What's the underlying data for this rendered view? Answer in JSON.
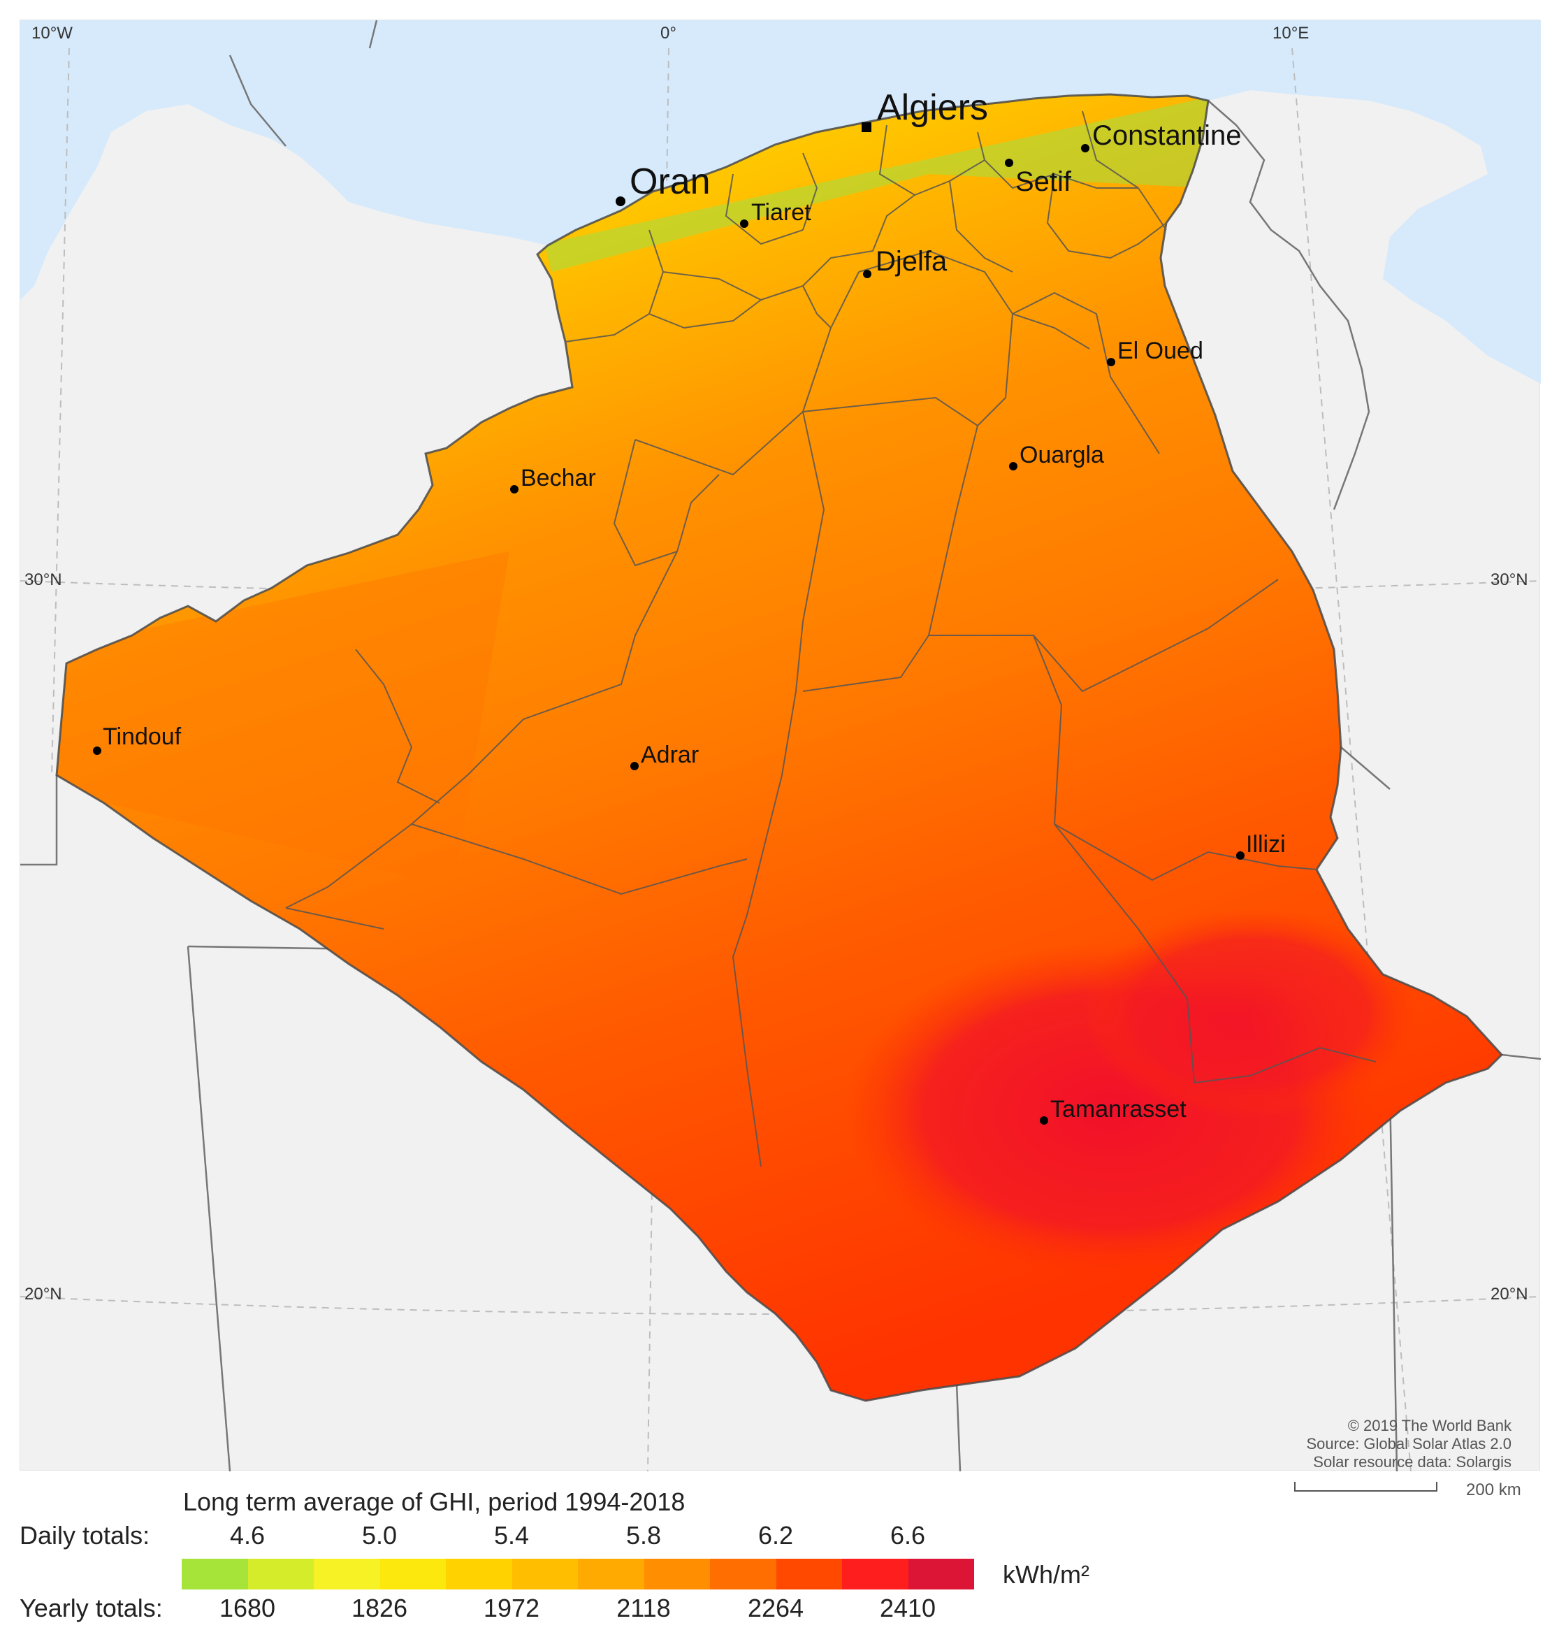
{
  "map": {
    "graticule": {
      "lon_labels": [
        "10°W",
        "0°",
        "10°E"
      ],
      "lat_labels_left": [
        "30°N",
        "20°N"
      ],
      "lat_labels_right": [
        "30°N",
        "20°N"
      ]
    },
    "cities": [
      {
        "name": "Algiers",
        "marker": "square-marker-icon"
      },
      {
        "name": "Constantine",
        "marker": "dot-marker-icon"
      },
      {
        "name": "Oran",
        "marker": "dot-marker-icon"
      },
      {
        "name": "Setif",
        "marker": "dot-marker-icon"
      },
      {
        "name": "Tiaret",
        "marker": "dot-marker-icon"
      },
      {
        "name": "Djelfa",
        "marker": "dot-marker-icon"
      },
      {
        "name": "El Oued",
        "marker": "dot-marker-icon"
      },
      {
        "name": "Ouargla",
        "marker": "dot-marker-icon"
      },
      {
        "name": "Bechar",
        "marker": "dot-marker-icon"
      },
      {
        "name": "Tindouf",
        "marker": "dot-marker-icon"
      },
      {
        "name": "Adrar",
        "marker": "dot-marker-icon"
      },
      {
        "name": "Illizi",
        "marker": "dot-marker-icon"
      },
      {
        "name": "Tamanrasset",
        "marker": "dot-marker-icon"
      }
    ],
    "credits": [
      "© 2019 The World Bank",
      "Source: Global Solar Atlas 2.0",
      "Solar resource data: Solargis"
    ],
    "scale": "200 km",
    "colors": {
      "sea": "#d6eafb",
      "land": "#f1f1f1",
      "border": "#6b6b6b"
    }
  },
  "legend": {
    "title": "Long term average of GHI, period 1994-2018",
    "daily_label": "Daily totals:",
    "daily_ticks": [
      "4.6",
      "5.0",
      "5.4",
      "5.8",
      "6.2",
      "6.6"
    ],
    "yearly_label": "Yearly totals:",
    "yearly_ticks": [
      "1680",
      "1826",
      "1972",
      "2118",
      "2264",
      "2410"
    ],
    "unit": "kWh/m²",
    "colors": [
      "#a6e43a",
      "#d4ec2a",
      "#f6f225",
      "#fde80e",
      "#ffd200",
      "#ffbe00",
      "#ffaa00",
      "#ff8f00",
      "#ff6e00",
      "#ff4800",
      "#ff1e1e",
      "#dc1436"
    ]
  }
}
